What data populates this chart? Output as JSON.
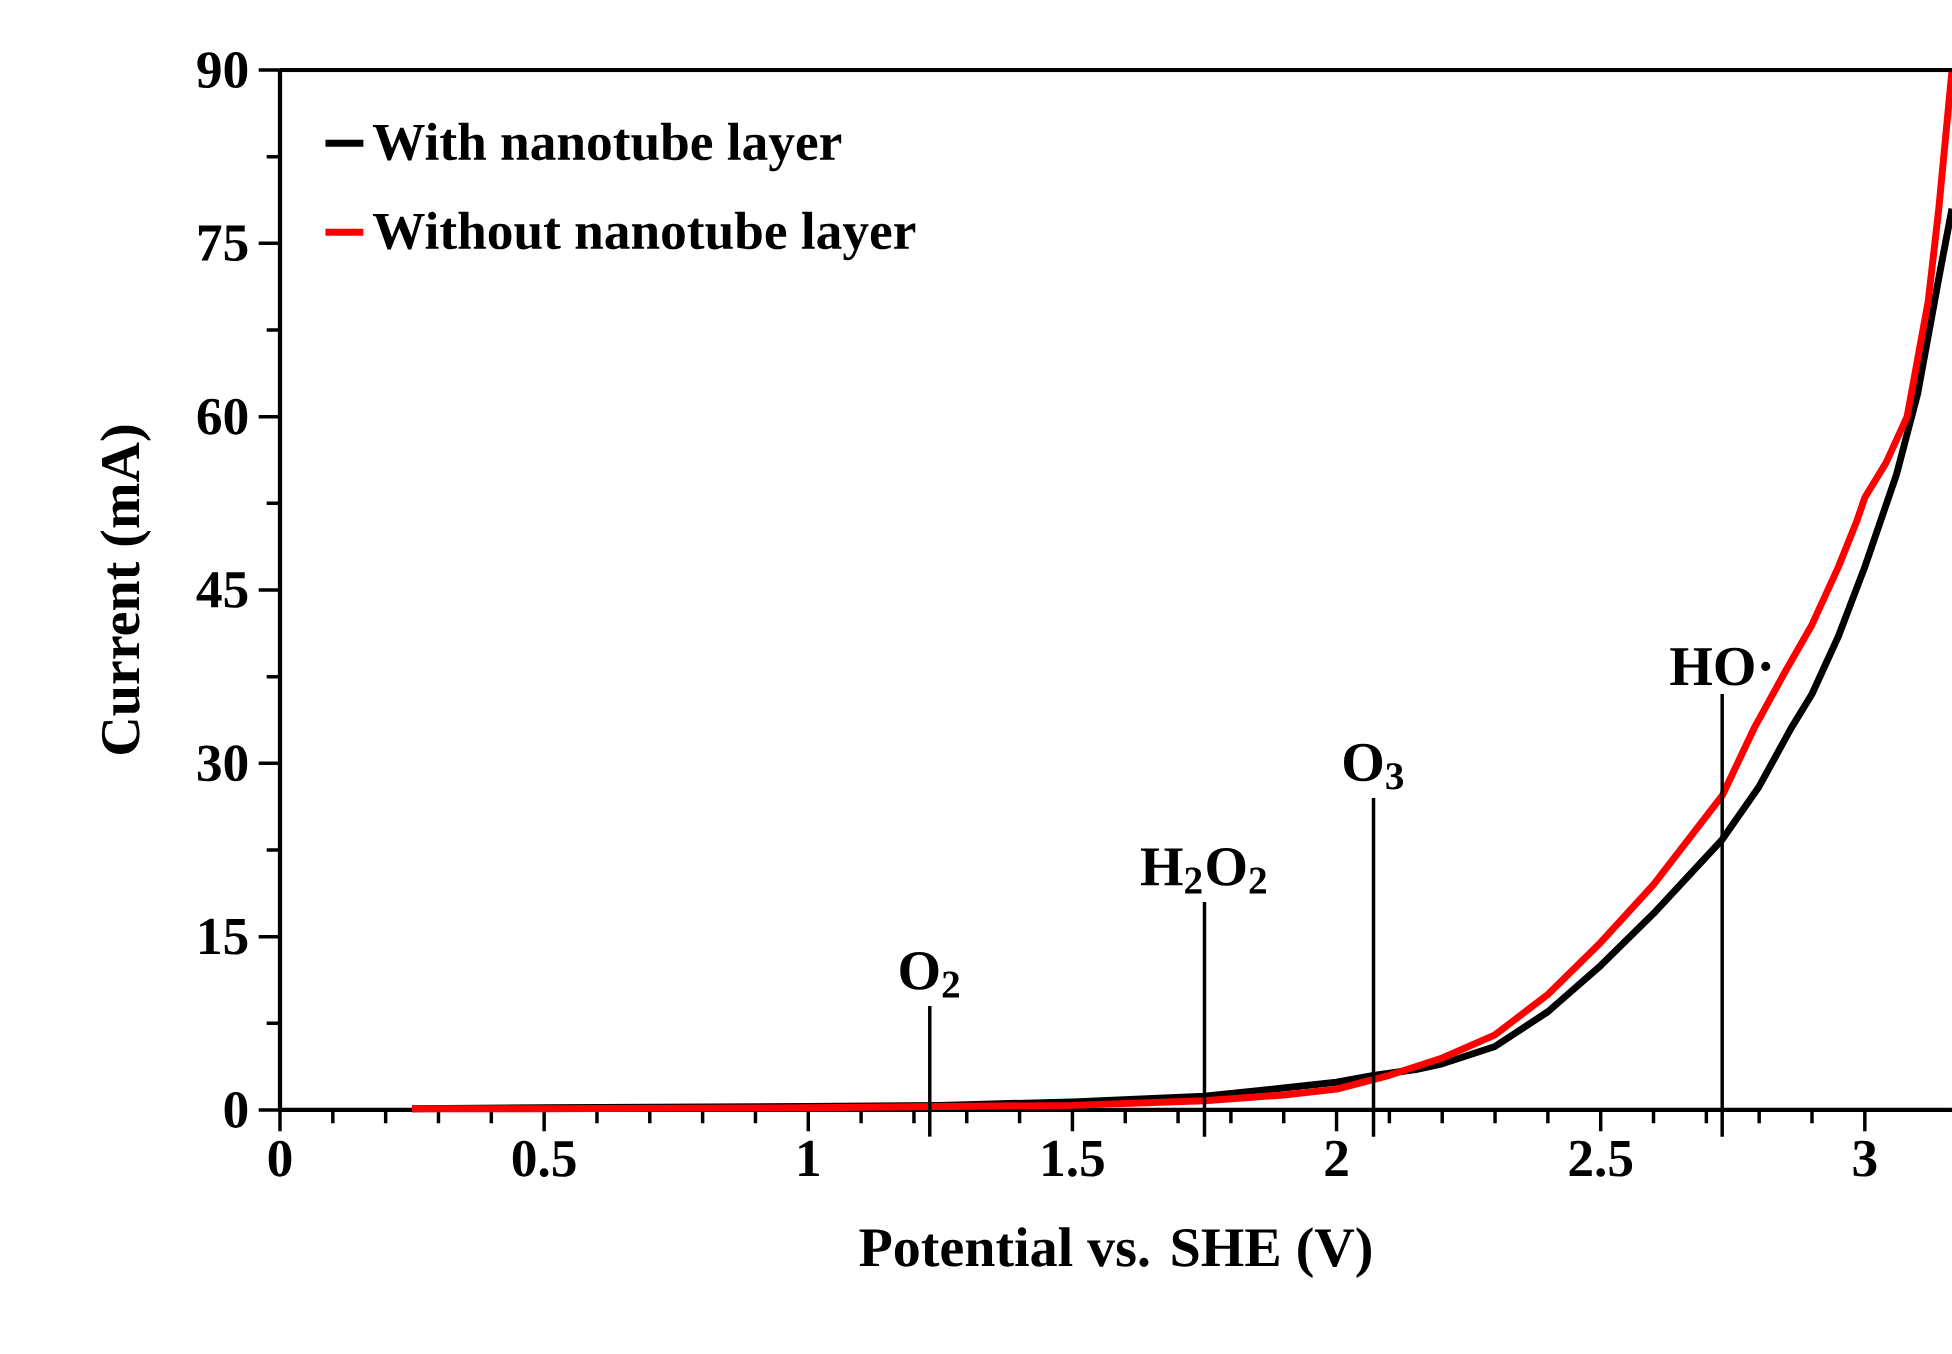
{
  "chart_data": {
    "type": "line",
    "xlabel": "Potential vs. SHE (V)",
    "ylabel": "Current (mA)",
    "xlim": [
      0,
      3.165
    ],
    "ylim": [
      0,
      90
    ],
    "xticks": [
      0,
      0.5,
      1,
      1.5,
      2,
      2.5,
      3
    ],
    "yticks": [
      0,
      15,
      30,
      45,
      60,
      75,
      90
    ],
    "legend": "top left",
    "series": [
      {
        "name": "With nanotube layer",
        "color": "#000000",
        "x": [
          0.25,
          0.5,
          1.0,
          1.25,
          1.5,
          1.75,
          1.9,
          2.0,
          2.07,
          2.15,
          2.2,
          2.3,
          2.4,
          2.5,
          2.6,
          2.73,
          2.8,
          2.86,
          2.9,
          2.95,
          3.0,
          3.03,
          3.06,
          3.1,
          3.12,
          3.14,
          3.165
        ],
        "values": [
          0.1,
          0.2,
          0.3,
          0.4,
          0.7,
          1.2,
          1.9,
          2.4,
          3.0,
          3.5,
          4.0,
          5.5,
          8.5,
          12.5,
          17,
          23.4,
          28,
          33,
          36,
          41,
          47,
          51,
          55,
          62,
          67,
          72,
          78
        ]
      },
      {
        "name": "Without nanotube layer",
        "color": "#ff0000",
        "x": [
          0.25,
          0.5,
          1.0,
          1.25,
          1.5,
          1.75,
          1.9,
          2.0,
          2.1,
          2.2,
          2.3,
          2.4,
          2.5,
          2.6,
          2.73,
          2.79,
          2.85,
          2.9,
          2.95,
          2.985,
          3.0,
          3.04,
          3.08,
          3.1,
          3.12,
          3.14,
          3.165
        ],
        "values": [
          0.1,
          0.1,
          0.2,
          0.3,
          0.4,
          0.8,
          1.3,
          1.8,
          3.0,
          4.5,
          6.5,
          10,
          14.5,
          19.5,
          27.2,
          33,
          38,
          42,
          47,
          51,
          53,
          56,
          60,
          65,
          70,
          78,
          90
        ]
      }
    ],
    "ref_lines": [
      {
        "axis": "x",
        "value": 1.23,
        "label": "O$_{2}$"
      },
      {
        "axis": "x",
        "value": 1.75,
        "label": "H$_{2}$O$_{2}$"
      },
      {
        "axis": "x",
        "value": 2.07,
        "label": "O$_{3}$"
      },
      {
        "axis": "x",
        "value": 2.73,
        "label": "HO·"
      }
    ]
  }
}
